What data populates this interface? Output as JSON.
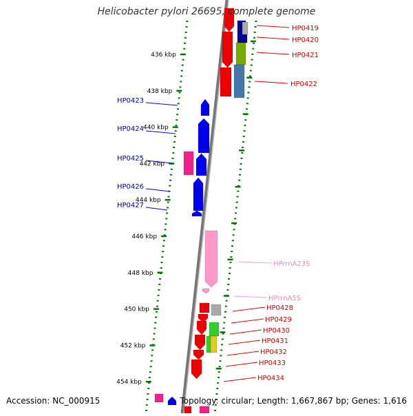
{
  "title": "Helicobacter pylori 26695, complete genome",
  "footer": {
    "accession": "Accession: NC_000915",
    "topology": "Topology: circular; Length: 1,667,867 bp; Genes: 1,616"
  },
  "colors": {
    "red": "#ee0000",
    "blue": "#0000ee",
    "pink": "#ff99cc",
    "magenta": "#ee2288",
    "navy": "#000099",
    "olive": "#77aa00",
    "steelblue": "#4477aa",
    "green": "#33cc33",
    "grey": "#aaaaaa",
    "label_red": "#cc0000",
    "label_blue": "#000099",
    "label_pink": "#ee88bb",
    "tick_green": "#007700"
  },
  "kbp_ticks": [
    {
      "label": "436 kbp",
      "kbp": 436
    },
    {
      "label": "438 kbp",
      "kbp": 438
    },
    {
      "label": "440 kbp",
      "kbp": 440
    },
    {
      "label": "442 kbp",
      "kbp": 442
    },
    {
      "label": "444 kbp",
      "kbp": 444
    },
    {
      "label": "446 kbp",
      "kbp": 446
    },
    {
      "label": "448 kbp",
      "kbp": 448
    },
    {
      "label": "450 kbp",
      "kbp": 450
    },
    {
      "label": "452 kbp",
      "kbp": 452
    },
    {
      "label": "454 kbp",
      "kbp": 454
    }
  ],
  "gene_labels_forward": [
    {
      "name": "HP0419",
      "color": "red"
    },
    {
      "name": "HP0420",
      "color": "red"
    },
    {
      "name": "HP0421",
      "color": "red"
    },
    {
      "name": "HP0422",
      "color": "red"
    }
  ],
  "gene_labels_reverse": [
    {
      "name": "HP0423",
      "color": "blue"
    },
    {
      "name": "HP0424",
      "color": "blue"
    },
    {
      "name": "HP0425",
      "color": "blue"
    },
    {
      "name": "HP0426",
      "color": "blue"
    },
    {
      "name": "HP0427",
      "color": "blue"
    }
  ],
  "gene_labels_rna": [
    {
      "name": "HPrrnA23S",
      "color": "pink"
    },
    {
      "name": "HPrrnA5S",
      "color": "pink"
    }
  ],
  "gene_labels_lower": [
    {
      "name": "HP0428",
      "color": "red"
    },
    {
      "name": "HP0429",
      "color": "red"
    },
    {
      "name": "HP0430",
      "color": "red"
    },
    {
      "name": "HP0431",
      "color": "red"
    },
    {
      "name": "HP0432",
      "color": "red"
    },
    {
      "name": "HP0433",
      "color": "red"
    },
    {
      "name": "HP0434",
      "color": "red"
    }
  ]
}
